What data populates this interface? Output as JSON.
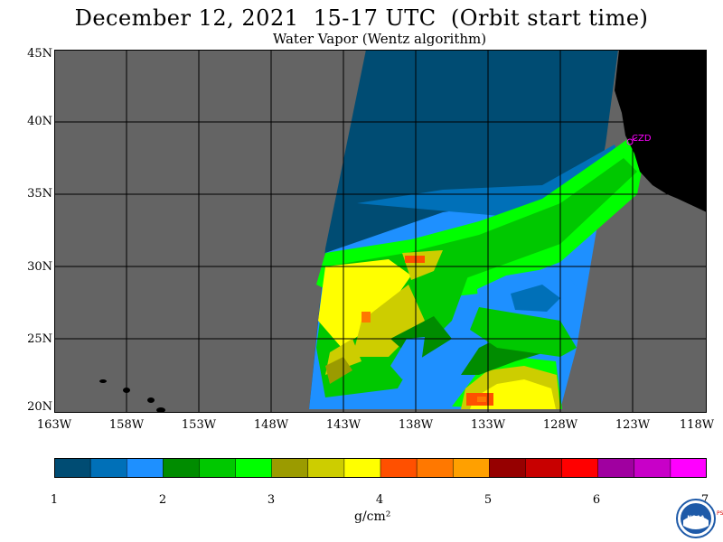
{
  "title": "December 12, 2021  15-17 UTC  (Orbit start time)",
  "subtitle": "Water Vapor (Wentz algorithm)",
  "lat_labels": [
    "45N",
    "40N",
    "35N",
    "30N",
    "25N",
    "20N"
  ],
  "lon_labels": [
    "163W",
    "158W",
    "153W",
    "148W",
    "143W",
    "138W",
    "133W",
    "128W",
    "123W",
    "118W"
  ],
  "station_label": "CZD",
  "colorbar": {
    "tick_labels": [
      "1",
      "2",
      "3",
      "4",
      "5",
      "6",
      "7"
    ],
    "unit": "g/cm²",
    "colors": [
      "#004c73",
      "#0070b8",
      "#1e90ff",
      "#008c00",
      "#00c800",
      "#00ff00",
      "#9b9b00",
      "#cdcd00",
      "#ffff00",
      "#ff5000",
      "#ff7800",
      "#ffa000",
      "#960000",
      "#c80000",
      "#ff0000",
      "#a000a0",
      "#c800c8",
      "#ff00ff"
    ]
  },
  "map_colors": {
    "nodata": "#646464",
    "land": "#000000",
    "grid": "#000000",
    "station": "#ff00ff"
  },
  "logo_text": "NOAA",
  "logo_side_text": "PSL"
}
